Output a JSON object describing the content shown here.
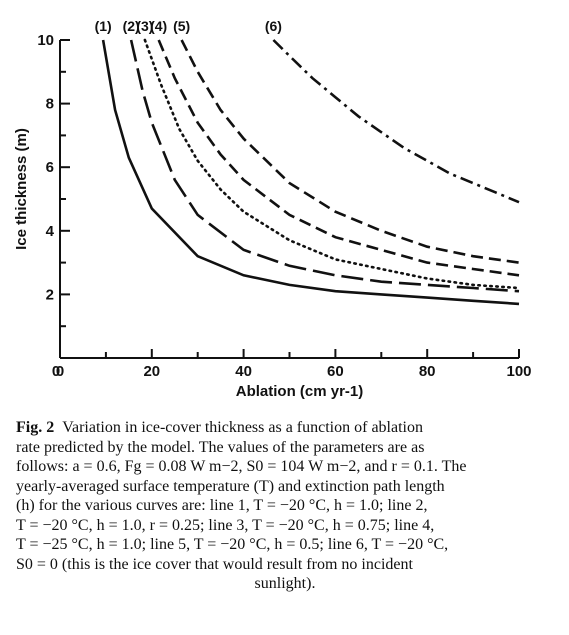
{
  "chart_data": {
    "type": "line",
    "xlabel": "Ablation (cm yr-1)",
    "ylabel": "Ice thickness (m)",
    "xlim": [
      0,
      100
    ],
    "ylim": [
      0,
      10
    ],
    "x_ticks": [
      "0",
      "20",
      "40",
      "60",
      "80",
      "100"
    ],
    "y_ticks": [
      "2",
      "4",
      "6",
      "8",
      "10"
    ],
    "grid": false,
    "series": [
      {
        "name": "(1)",
        "dash": "solid",
        "x": [
          9.4,
          12,
          15,
          20,
          30,
          40,
          50,
          60,
          70,
          80,
          90,
          100
        ],
        "y": [
          10,
          7.8,
          6.3,
          4.7,
          3.2,
          2.6,
          2.3,
          2.1,
          2.0,
          1.9,
          1.8,
          1.7
        ]
      },
      {
        "name": "(2)",
        "dash": "longdash",
        "x": [
          15.5,
          18,
          20,
          25,
          30,
          40,
          50,
          60,
          70,
          80,
          90,
          100
        ],
        "y": [
          10,
          8.4,
          7.4,
          5.6,
          4.5,
          3.4,
          2.9,
          2.6,
          2.4,
          2.3,
          2.2,
          2.1
        ]
      },
      {
        "name": "(3)",
        "dash": "dotted",
        "x": [
          18.5,
          22,
          26,
          30,
          35,
          40,
          50,
          60,
          70,
          80,
          90,
          100
        ],
        "y": [
          10,
          8.6,
          7.2,
          6.2,
          5.3,
          4.6,
          3.7,
          3.1,
          2.8,
          2.5,
          2.3,
          2.2
        ]
      },
      {
        "name": "(4)",
        "dash": "dash",
        "x": [
          21.5,
          25,
          30,
          35,
          40,
          50,
          60,
          70,
          80,
          90,
          100
        ],
        "y": [
          10,
          8.8,
          7.4,
          6.4,
          5.6,
          4.5,
          3.8,
          3.4,
          3.0,
          2.8,
          2.6
        ]
      },
      {
        "name": "(5)",
        "dash": "dash",
        "x": [
          26.5,
          30,
          35,
          40,
          50,
          60,
          70,
          80,
          90,
          100
        ],
        "y": [
          10,
          9.0,
          7.8,
          6.9,
          5.5,
          4.6,
          4.0,
          3.5,
          3.2,
          3.0
        ]
      },
      {
        "name": "(6)",
        "dash": "dashdot",
        "x": [
          46.5,
          50,
          55,
          60,
          65,
          70,
          75,
          80,
          85,
          90,
          95,
          100
        ],
        "y": [
          10,
          9.5,
          8.8,
          8.2,
          7.6,
          7.1,
          6.6,
          6.2,
          5.8,
          5.5,
          5.2,
          4.9
        ]
      }
    ]
  },
  "caption": {
    "fig_label": "Fig. 2",
    "lines": [
      "Variation in ice-cover thickness as a function of ablation",
      "rate predicted by the model. The values of the parameters are as",
      "follows: a = 0.6, Fg = 0.08 W m−2, S0 = 104 W m−2, and r = 0.1. The",
      "yearly-averaged surface temperature (T) and extinction path length",
      "(h) for the various curves are: line 1, T = −20 °C, h = 1.0; line 2,",
      "T = −20 °C, h = 1.0, r = 0.25; line 3, T = −20 °C, h = 0.75; line 4,",
      "T = −25 °C, h = 1.0; line 5, T = −20 °C, h = 0.5; line 6, T = −20 °C,",
      "S0 = 0 (this is the ice cover that would result from no incident",
      "sunlight)."
    ]
  }
}
